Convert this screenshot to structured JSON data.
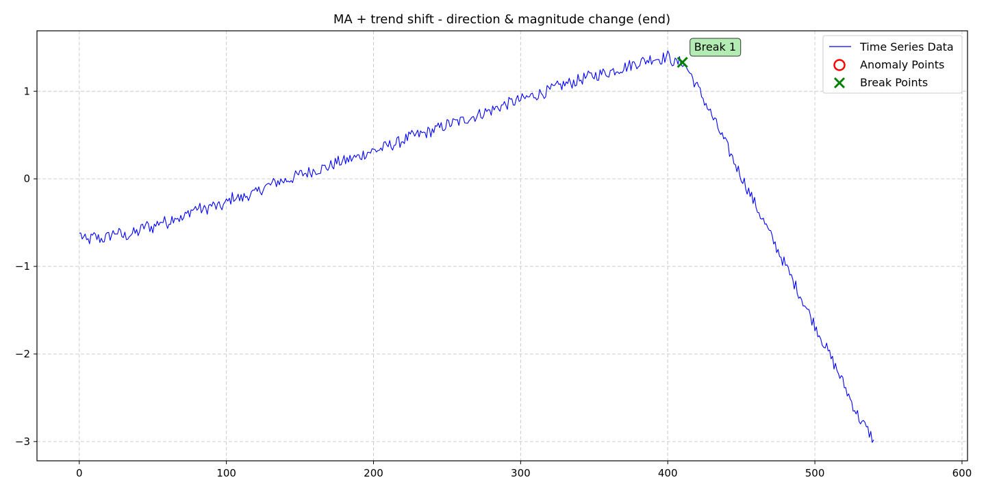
{
  "chart_data": {
    "type": "line",
    "title": "MA + trend shift - direction & magnitude change (end)",
    "xlabel": "",
    "ylabel": "",
    "xlim": [
      -28.75,
      603.75
    ],
    "ylim": [
      -3.22,
      1.69
    ],
    "xticks": [
      0,
      100,
      200,
      300,
      400,
      500,
      600
    ],
    "yticks": [
      -3,
      -2,
      -1,
      0,
      1
    ],
    "xtick_labels": [
      "0",
      "100",
      "200",
      "300",
      "400",
      "500",
      "600"
    ],
    "ytick_labels": [
      "−3",
      "−2",
      "−1",
      "0",
      "1"
    ],
    "grid": true,
    "legend_position": "top-right",
    "series": [
      {
        "name": "Time Series Data",
        "color": "#0000ff",
        "x_start": 0,
        "x_step": 5,
        "values": [
          -0.62,
          -0.72,
          -0.66,
          -0.69,
          -0.66,
          -0.6,
          -0.66,
          -0.63,
          -0.61,
          -0.53,
          -0.56,
          -0.48,
          -0.5,
          -0.42,
          -0.47,
          -0.37,
          -0.33,
          -0.36,
          -0.3,
          -0.33,
          -0.28,
          -0.2,
          -0.23,
          -0.18,
          -0.17,
          -0.1,
          -0.07,
          -0.03,
          -0.02,
          0.01,
          0.05,
          0.07,
          0.1,
          0.12,
          0.14,
          0.19,
          0.2,
          0.23,
          0.25,
          0.3,
          0.32,
          0.34,
          0.38,
          0.4,
          0.44,
          0.48,
          0.5,
          0.52,
          0.55,
          0.58,
          0.62,
          0.64,
          0.66,
          0.7,
          0.72,
          0.76,
          0.78,
          0.82,
          0.85,
          0.88,
          0.9,
          0.93,
          0.96,
          0.98,
          1.01,
          1.05,
          1.08,
          1.1,
          1.13,
          1.16,
          1.18,
          1.2,
          1.22,
          1.25,
          1.27,
          1.3,
          1.33,
          1.35,
          1.38,
          1.37,
          1.4,
          1.32,
          1.34,
          1.21,
          1.05,
          0.89,
          0.72,
          0.55,
          0.38,
          0.2,
          0.03,
          -0.14,
          -0.31,
          -0.48,
          -0.65,
          -0.82,
          -0.99,
          -1.16,
          -1.33,
          -1.5,
          -1.67,
          -1.84,
          -2.01,
          -2.18,
          -2.36,
          -2.55,
          -2.73,
          -2.85,
          -2.98
        ],
        "noise_amplitude": 0.07
      }
    ],
    "anomaly_points": [],
    "break_points": [
      {
        "x": 410,
        "y": 1.33,
        "label": "Break 1"
      }
    ],
    "legend": [
      {
        "label": "Time Series Data",
        "marker": "line",
        "color": "#0000ff"
      },
      {
        "label": "Anomaly Points",
        "marker": "circle",
        "color": "#ff0000"
      },
      {
        "label": "Break Points",
        "marker": "x",
        "color": "#008000"
      }
    ],
    "annotation_color": "#b3ecb3"
  }
}
